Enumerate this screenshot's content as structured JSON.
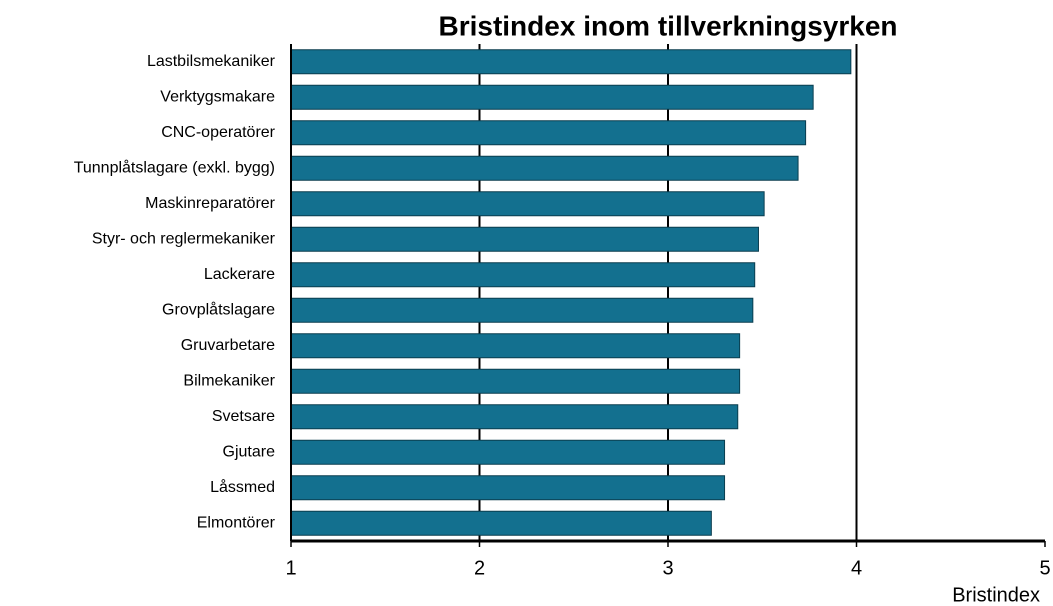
{
  "chart_data": {
    "type": "barh",
    "title": "Bristindex inom tillverkningsyrken",
    "categories": [
      "Lastbilsmekaniker",
      "Verktygsmakare",
      "CNC-operatörer",
      "Tunnplåtslagare (exkl. bygg)",
      "Maskinreparatörer",
      "Styr- och reglermekaniker",
      "Lackerare",
      "Grovplåtslagare",
      "Gruvarbetare",
      "Bilmekaniker",
      "Svetsare",
      "Gjutare",
      "Låssmed",
      "Elmontörer"
    ],
    "values": [
      3.97,
      3.77,
      3.73,
      3.69,
      3.51,
      3.48,
      3.46,
      3.45,
      3.38,
      3.38,
      3.37,
      3.3,
      3.3,
      3.23
    ],
    "color": "#13708f",
    "xlabel": "Bristindex",
    "xlim": [
      1,
      5
    ],
    "xticks": [
      1,
      2,
      3,
      4,
      5
    ],
    "grid": true
  }
}
